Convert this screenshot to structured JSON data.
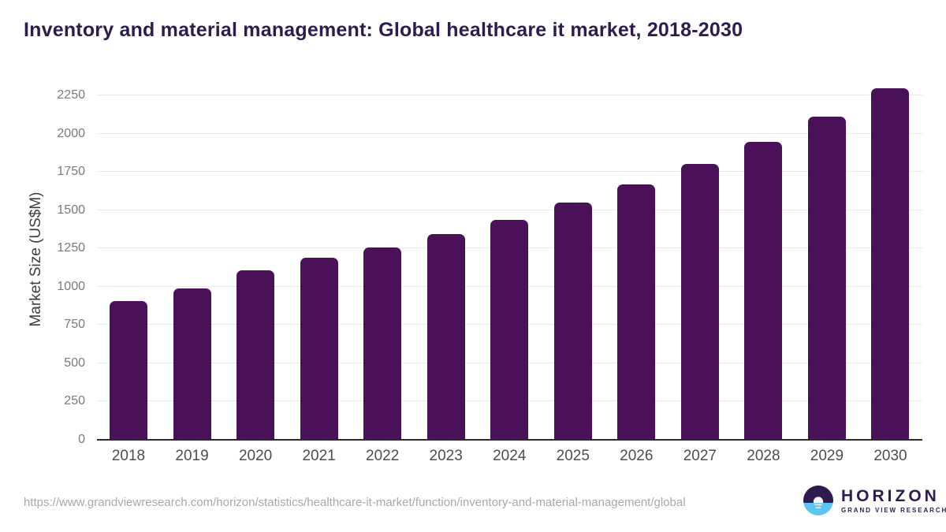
{
  "header": {
    "title": "Inventory and material management: Global healthcare it market, 2018-2030"
  },
  "chart_data": {
    "type": "bar",
    "title": "Inventory and material management: Global healthcare it market, 2018-2030",
    "categories": [
      "2018",
      "2019",
      "2020",
      "2021",
      "2022",
      "2023",
      "2024",
      "2025",
      "2026",
      "2027",
      "2028",
      "2029",
      "2030"
    ],
    "values": [
      905,
      990,
      1110,
      1190,
      1255,
      1345,
      1440,
      1550,
      1670,
      1805,
      1950,
      2115,
      2300
    ],
    "xlabel": "",
    "ylabel": "Market Size (US$M)",
    "yticks": [
      0,
      250,
      500,
      750,
      1000,
      1250,
      1500,
      1750,
      2000,
      2250
    ],
    "ylim": [
      0,
      2360
    ],
    "grid": true,
    "legend": "none",
    "bar_color": "#4a1159"
  },
  "footer": {
    "source_url": "https://www.grandviewresearch.com/horizon/statistics/healthcare-it-market/function/inventory-and-material-management/global"
  },
  "logo": {
    "name": "HORIZON",
    "subtitle": "GRAND VIEW RESEARCH"
  },
  "colors": {
    "bar_purple": "#4a1159",
    "title_purple": "#2e1b4f",
    "logo_blue": "#5bc6f2",
    "gridline_gray": "#e8e8e8",
    "axis_line": "#2d2d2d",
    "y_tick_gray": "#7a7a7a",
    "x_tick_gray": "#4d4d4d",
    "url_gray": "#a8a8a8"
  }
}
